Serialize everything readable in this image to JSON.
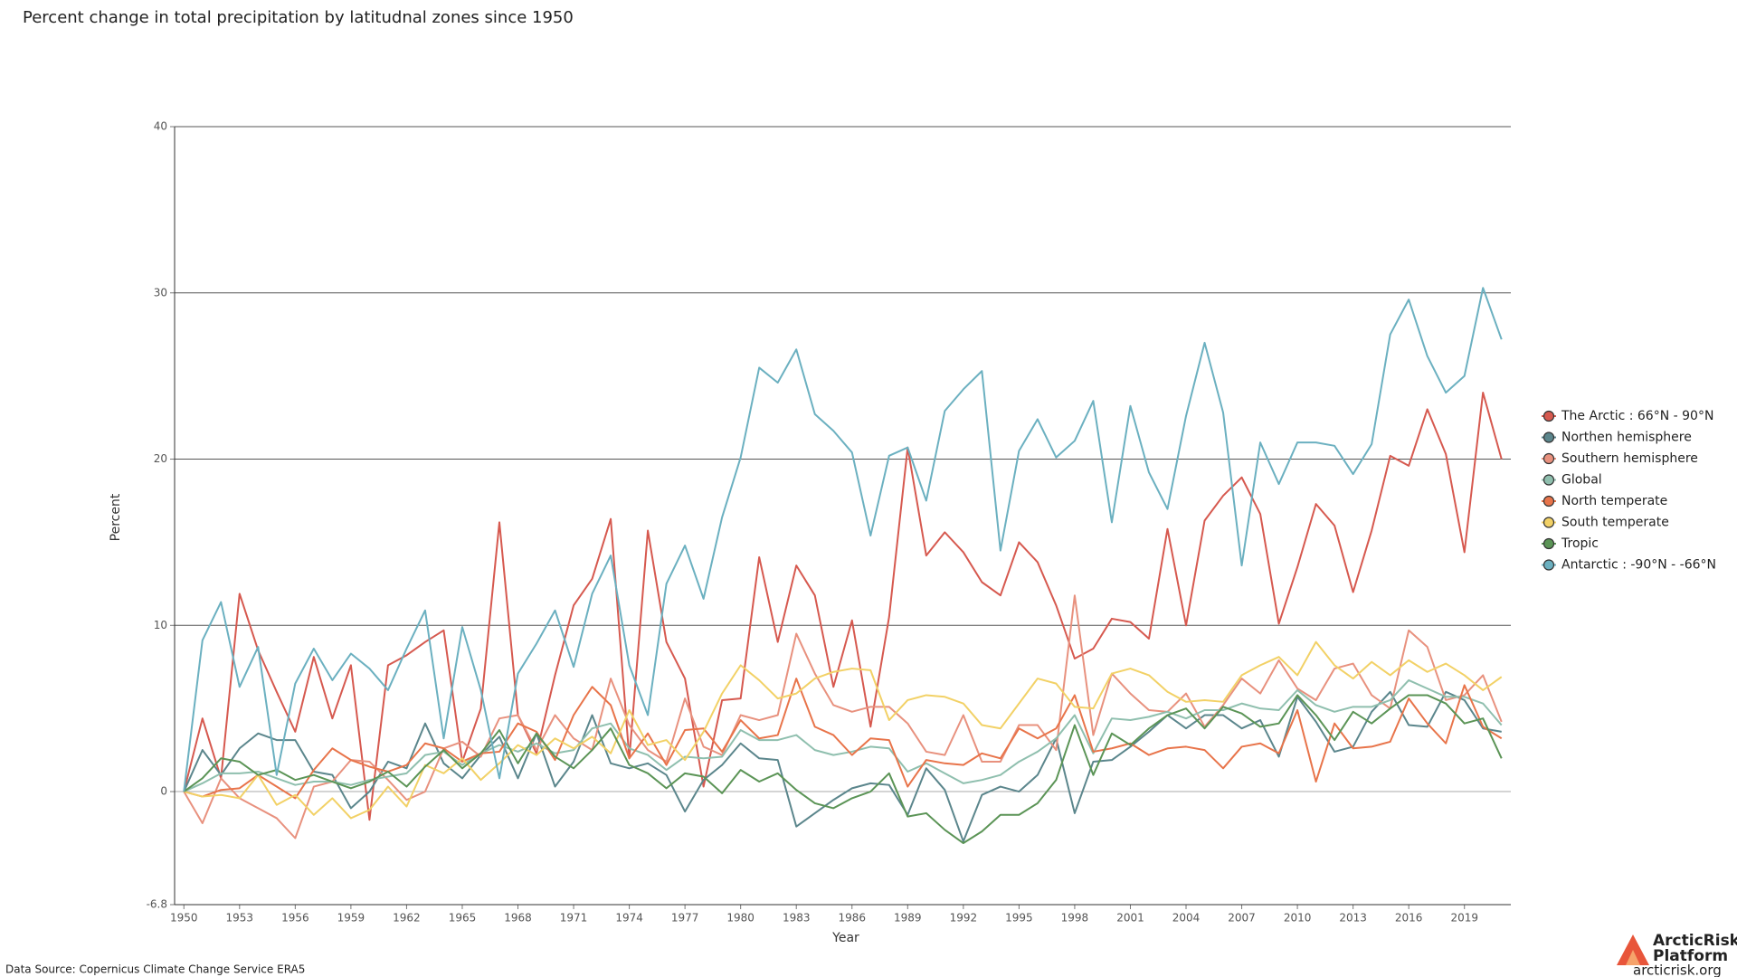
{
  "chart_data": {
    "type": "line",
    "title": "Percent change in total precipitation by latitudnal zones since 1950",
    "xlabel": "Year",
    "ylabel": "Percent",
    "source": "Data Source: Copernicus Climate Change Service ERA5",
    "logo": {
      "name": "ArcticRisk",
      "subtitle": "Platform",
      "url": "arcticrisk.org"
    },
    "legend": "right",
    "grid": true,
    "xlim": [
      1949.5,
      2021.5
    ],
    "ylim": [
      -6.8,
      40
    ],
    "yticks": [
      -6.8,
      0,
      10,
      20,
      30,
      40
    ],
    "xticks": [
      1950,
      1953,
      1956,
      1959,
      1962,
      1965,
      1968,
      1971,
      1974,
      1977,
      1980,
      1983,
      1986,
      1989,
      1992,
      1995,
      1998,
      2001,
      2004,
      2007,
      2010,
      2013,
      2016,
      2019
    ],
    "x": [
      1950,
      1951,
      1952,
      1953,
      1954,
      1955,
      1956,
      1957,
      1958,
      1959,
      1960,
      1961,
      1962,
      1963,
      1964,
      1965,
      1966,
      1967,
      1968,
      1969,
      1970,
      1971,
      1972,
      1973,
      1974,
      1975,
      1976,
      1977,
      1978,
      1979,
      1980,
      1981,
      1982,
      1983,
      1984,
      1985,
      1986,
      1987,
      1988,
      1989,
      1990,
      1991,
      1992,
      1993,
      1994,
      1995,
      1996,
      1997,
      1998,
      1999,
      2000,
      2001,
      2002,
      2003,
      2004,
      2005,
      2006,
      2007,
      2008,
      2009,
      2010,
      2011,
      2012,
      2013,
      2014,
      2015,
      2016,
      2017,
      2018,
      2019,
      2020,
      2021
    ],
    "series": [
      {
        "name": "The Arctic : 66°N - 90°N",
        "color": "#d6594f",
        "values": [
          0,
          4.4,
          0.8,
          11.9,
          8.5,
          6,
          3.6,
          8.1,
          4.4,
          7.6,
          -1.7,
          7.6,
          8.2,
          9,
          9.7,
          1.8,
          5,
          16.2,
          4.6,
          2.3,
          7,
          11.2,
          12.8,
          16.4,
          2,
          15.7,
          9,
          6.8,
          0.3,
          5.5,
          5.6,
          14.1,
          9,
          13.6,
          11.8,
          6.3,
          10.3,
          3.9,
          10.5,
          20.7,
          14.2,
          15.6,
          14.4,
          12.6,
          11.8,
          15,
          13.8,
          11.2,
          8,
          8.6,
          10.4,
          10.2,
          9.2,
          15.8,
          10,
          16.3,
          17.8,
          18.9,
          16.7,
          10.1,
          13.5,
          17.3,
          16,
          12,
          15.7,
          20.2,
          19.6,
          23,
          20.3,
          14.4,
          24,
          20
        ]
      },
      {
        "name": "Northen hemisphere",
        "color": "#5b868c",
        "values": [
          0,
          2.5,
          1,
          2.6,
          3.5,
          3.1,
          3.1,
          1.2,
          1,
          -1,
          0,
          1.8,
          1.4,
          4.1,
          1.7,
          0.8,
          2.2,
          3.3,
          0.8,
          3.5,
          0.3,
          1.8,
          4.6,
          1.7,
          1.4,
          1.7,
          1,
          -1.2,
          0.7,
          1.6,
          2.9,
          2,
          1.9,
          -2.1,
          -1.3,
          -0.5,
          0.2,
          0.5,
          0.4,
          -1.4,
          1.4,
          0.1,
          -3,
          -0.2,
          0.3,
          0,
          1,
          3.2,
          -1.3,
          1.8,
          1.9,
          2.7,
          3.6,
          4.6,
          3.8,
          4.6,
          4.6,
          3.8,
          4.3,
          2.1,
          5.7,
          4.2,
          2.4,
          2.7,
          4.8,
          6,
          4,
          3.9,
          6,
          5.5,
          3.8,
          3.6
        ]
      },
      {
        "name": "Southern hemisphere",
        "color": "#e8917e",
        "values": [
          0,
          -1.9,
          0.8,
          -0.4,
          -1,
          -1.6,
          -2.8,
          0.3,
          0.6,
          1.9,
          1.8,
          0.7,
          -0.5,
          0,
          2.6,
          3,
          2.1,
          4.4,
          4.6,
          2.5,
          4.6,
          3.2,
          2.5,
          6.8,
          4,
          2.5,
          1.8,
          5.6,
          2.7,
          2.2,
          4.6,
          4.3,
          4.6,
          9.5,
          7.1,
          5.2,
          4.8,
          5.1,
          5.1,
          4.1,
          2.4,
          2.2,
          4.6,
          1.8,
          1.8,
          4,
          4,
          2.5,
          11.8,
          3.4,
          7.1,
          5.9,
          4.9,
          4.8,
          5.9,
          3.9,
          5.2,
          6.8,
          5.9,
          7.9,
          6.2,
          5.5,
          7.4,
          7.7,
          5.8,
          5,
          9.7,
          8.7,
          5.5,
          5.8,
          7,
          4.2
        ]
      },
      {
        "name": "Global",
        "color": "#8fbfae",
        "values": [
          0,
          0.5,
          1.1,
          1.1,
          1.2,
          0.8,
          0.4,
          0.6,
          0.6,
          0.4,
          0.7,
          0.9,
          1.1,
          2.2,
          2.4,
          1.6,
          2.3,
          2.8,
          2.4,
          2.9,
          2.3,
          2.5,
          3.8,
          4.1,
          2.6,
          2.2,
          1.3,
          2.1,
          2,
          2.1,
          3.7,
          3.1,
          3.1,
          3.4,
          2.5,
          2.2,
          2.4,
          2.7,
          2.6,
          1.2,
          1.7,
          1.1,
          0.5,
          0.7,
          1,
          1.8,
          2.4,
          3.2,
          4.6,
          2.3,
          4.4,
          4.3,
          4.5,
          4.8,
          4.4,
          4.9,
          4.9,
          5.3,
          5,
          4.9,
          6.1,
          5.2,
          4.8,
          5.1,
          5.1,
          5.5,
          6.7,
          6.2,
          5.7,
          5.7,
          5.3,
          4
        ]
      },
      {
        "name": "North temperate",
        "color": "#e8744a",
        "values": [
          0,
          -0.3,
          0.1,
          0.2,
          1,
          0.3,
          -0.4,
          1.3,
          2.6,
          1.9,
          1.5,
          1.2,
          1.6,
          2.9,
          2.6,
          1.8,
          2.3,
          2.4,
          4.1,
          3.6,
          1.9,
          4.6,
          6.3,
          5.2,
          2,
          3.5,
          1.6,
          3.7,
          3.8,
          2.4,
          4.3,
          3.2,
          3.4,
          6.8,
          3.9,
          3.4,
          2.2,
          3.2,
          3.1,
          0.3,
          1.9,
          1.7,
          1.6,
          2.3,
          2,
          3.8,
          3.2,
          3.8,
          5.8,
          2.4,
          2.6,
          2.9,
          2.2,
          2.6,
          2.7,
          2.5,
          1.4,
          2.7,
          2.9,
          2.3,
          4.9,
          0.6,
          4.1,
          2.6,
          2.7,
          3,
          5.6,
          4.1,
          2.9,
          6.4,
          3.9,
          3.2
        ]
      },
      {
        "name": "South temperate",
        "color": "#f2d166",
        "values": [
          0,
          -0.3,
          -0.2,
          -0.4,
          1,
          -0.8,
          -0.2,
          -1.4,
          -0.4,
          -1.6,
          -1.1,
          0.3,
          -0.9,
          1.6,
          1.1,
          2,
          0.7,
          1.7,
          2.8,
          2.2,
          3.2,
          2.6,
          3.3,
          2.3,
          4.9,
          2.8,
          3.1,
          1.9,
          3.6,
          5.9,
          7.6,
          6.7,
          5.6,
          5.9,
          6.8,
          7.2,
          7.4,
          7.3,
          4.3,
          5.5,
          5.8,
          5.7,
          5.3,
          4,
          3.8,
          5.3,
          6.8,
          6.5,
          5.1,
          5,
          7.1,
          7.4,
          7,
          6,
          5.4,
          5.5,
          5.4,
          7,
          7.6,
          8.1,
          7,
          9,
          7.6,
          6.8,
          7.8,
          7,
          7.9,
          7.2,
          7.7,
          7,
          6.1,
          6.9
        ]
      },
      {
        "name": "Tropic",
        "color": "#5b9456",
        "values": [
          0,
          0.8,
          2,
          1.8,
          1,
          1.3,
          0.7,
          1,
          0.6,
          0.2,
          0.6,
          1.2,
          0.3,
          1.5,
          2.5,
          1.4,
          2.3,
          3.7,
          1.7,
          3.5,
          2.1,
          1.4,
          2.5,
          3.8,
          1.6,
          1.1,
          0.2,
          1.1,
          0.9,
          -0.1,
          1.3,
          0.6,
          1.1,
          0.1,
          -0.7,
          -1,
          -0.4,
          0,
          1.1,
          -1.5,
          -1.3,
          -2.3,
          -3.1,
          -2.4,
          -1.4,
          -1.4,
          -0.7,
          0.7,
          4,
          1,
          3.5,
          2.8,
          3.8,
          4.6,
          5,
          3.8,
          5.1,
          4.7,
          3.9,
          4.1,
          5.8,
          4.6,
          3.1,
          4.8,
          4.1,
          5,
          5.8,
          5.8,
          5.3,
          4.1,
          4.4,
          2
        ]
      },
      {
        "name": "Antarctic : -90°N - -66°N",
        "color": "#6bb0c0",
        "values": [
          0,
          9.1,
          11.4,
          6.3,
          8.7,
          1,
          6.5,
          8.6,
          6.7,
          8.3,
          7.4,
          6.1,
          8.6,
          10.9,
          3.2,
          9.9,
          6.1,
          0.8,
          7.1,
          8.9,
          10.9,
          7.5,
          11.9,
          14.2,
          7.6,
          4.6,
          12.5,
          14.8,
          11.6,
          16.5,
          20.1,
          25.5,
          24.6,
          26.6,
          22.7,
          21.7,
          20.4,
          15.4,
          20.2,
          20.7,
          17.5,
          22.9,
          24.2,
          25.3,
          14.5,
          20.5,
          22.4,
          20.1,
          21.1,
          23.5,
          16.2,
          23.2,
          19.2,
          17,
          22.6,
          27,
          22.8,
          13.6,
          21,
          18.5,
          21,
          21,
          20.8,
          19.1,
          20.9,
          27.5,
          29.6,
          26.2,
          24,
          25,
          30.3,
          27.2
        ]
      }
    ]
  }
}
